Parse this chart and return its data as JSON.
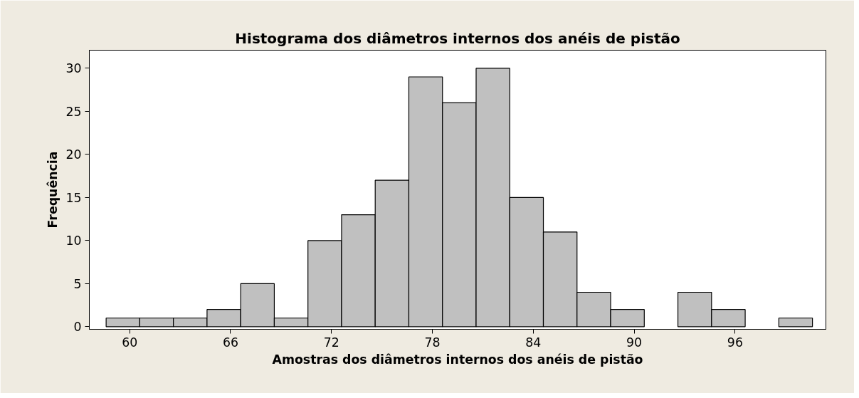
{
  "chart_data": {
    "type": "histogram",
    "title": "Histograma dos diâmetros internos dos anéis de pistão",
    "xlabel": "Amostras dos diâmetros internos dos anéis de pistão",
    "ylabel": "Frequência",
    "bins": [
      58.6,
      60.6,
      62.6,
      64.6,
      66.6,
      68.6,
      70.6,
      72.6,
      74.6,
      76.6,
      78.6,
      80.6,
      82.6,
      84.6,
      86.6,
      88.6,
      90.6,
      92.6,
      94.6,
      96.6,
      98.6,
      100.6
    ],
    "values": [
      1,
      1,
      1,
      2,
      5,
      1,
      10,
      13,
      17,
      29,
      26,
      30,
      15,
      11,
      4,
      2,
      0,
      4,
      2,
      0,
      1
    ],
    "color": "#c0c0c0",
    "xlim": [
      57.6,
      101.4
    ],
    "ylim": [
      -0.3,
      32.1
    ],
    "xticks": [
      60,
      66,
      72,
      78,
      84,
      90,
      96
    ],
    "yticks": [
      0,
      5,
      10,
      15,
      20,
      25,
      30
    ],
    "grid": false
  }
}
